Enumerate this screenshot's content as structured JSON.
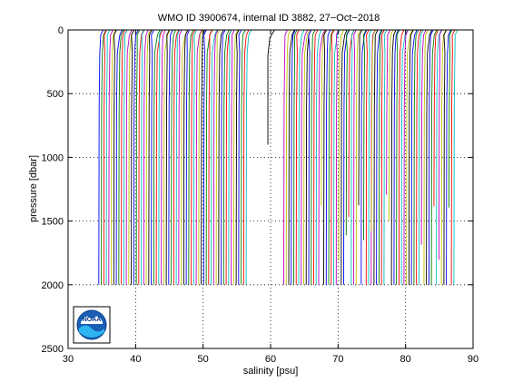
{
  "chart_data": {
    "type": "line",
    "title": "WMO ID 3900674, internal ID 3882, 27−Oct−2018",
    "xlabel": "salinity [psu]",
    "ylabel": "pressure [dbar]",
    "xlim": [
      30,
      90
    ],
    "ylim": [
      2500,
      0
    ],
    "y_reversed": true,
    "grid": true,
    "x_ticks": [
      "30",
      "40",
      "50",
      "60",
      "70",
      "80",
      "90"
    ],
    "y_ticks": [
      "0",
      "500",
      "1000",
      "1500",
      "2000",
      "2500"
    ],
    "colors": [
      "#0000ff",
      "#008000",
      "#ff0000",
      "#00bfbf",
      "#bf00bf",
      "#bfbf00",
      "#000000"
    ],
    "series_groups": [
      {
        "x_start": 34.6,
        "x_end": 56.6,
        "x_step": 0.37,
        "surface_shift": 0.6,
        "max_pressure": 2000,
        "variable_depth": false
      },
      {
        "x_start": 62.0,
        "x_end": 75.0,
        "x_step": 0.37,
        "surface_shift": 0.6,
        "max_pressure": 2000,
        "variable_depth": true
      },
      {
        "x_start": 75.0,
        "x_end": 87.3,
        "x_step": 0.37,
        "surface_shift": 0.6,
        "max_pressure": 2000,
        "variable_depth": true
      }
    ],
    "isolated_profile": {
      "x": 59.6,
      "surface_x": 60.6,
      "bottom_pressure": 900
    }
  },
  "logo": {
    "text": "NOAA"
  }
}
